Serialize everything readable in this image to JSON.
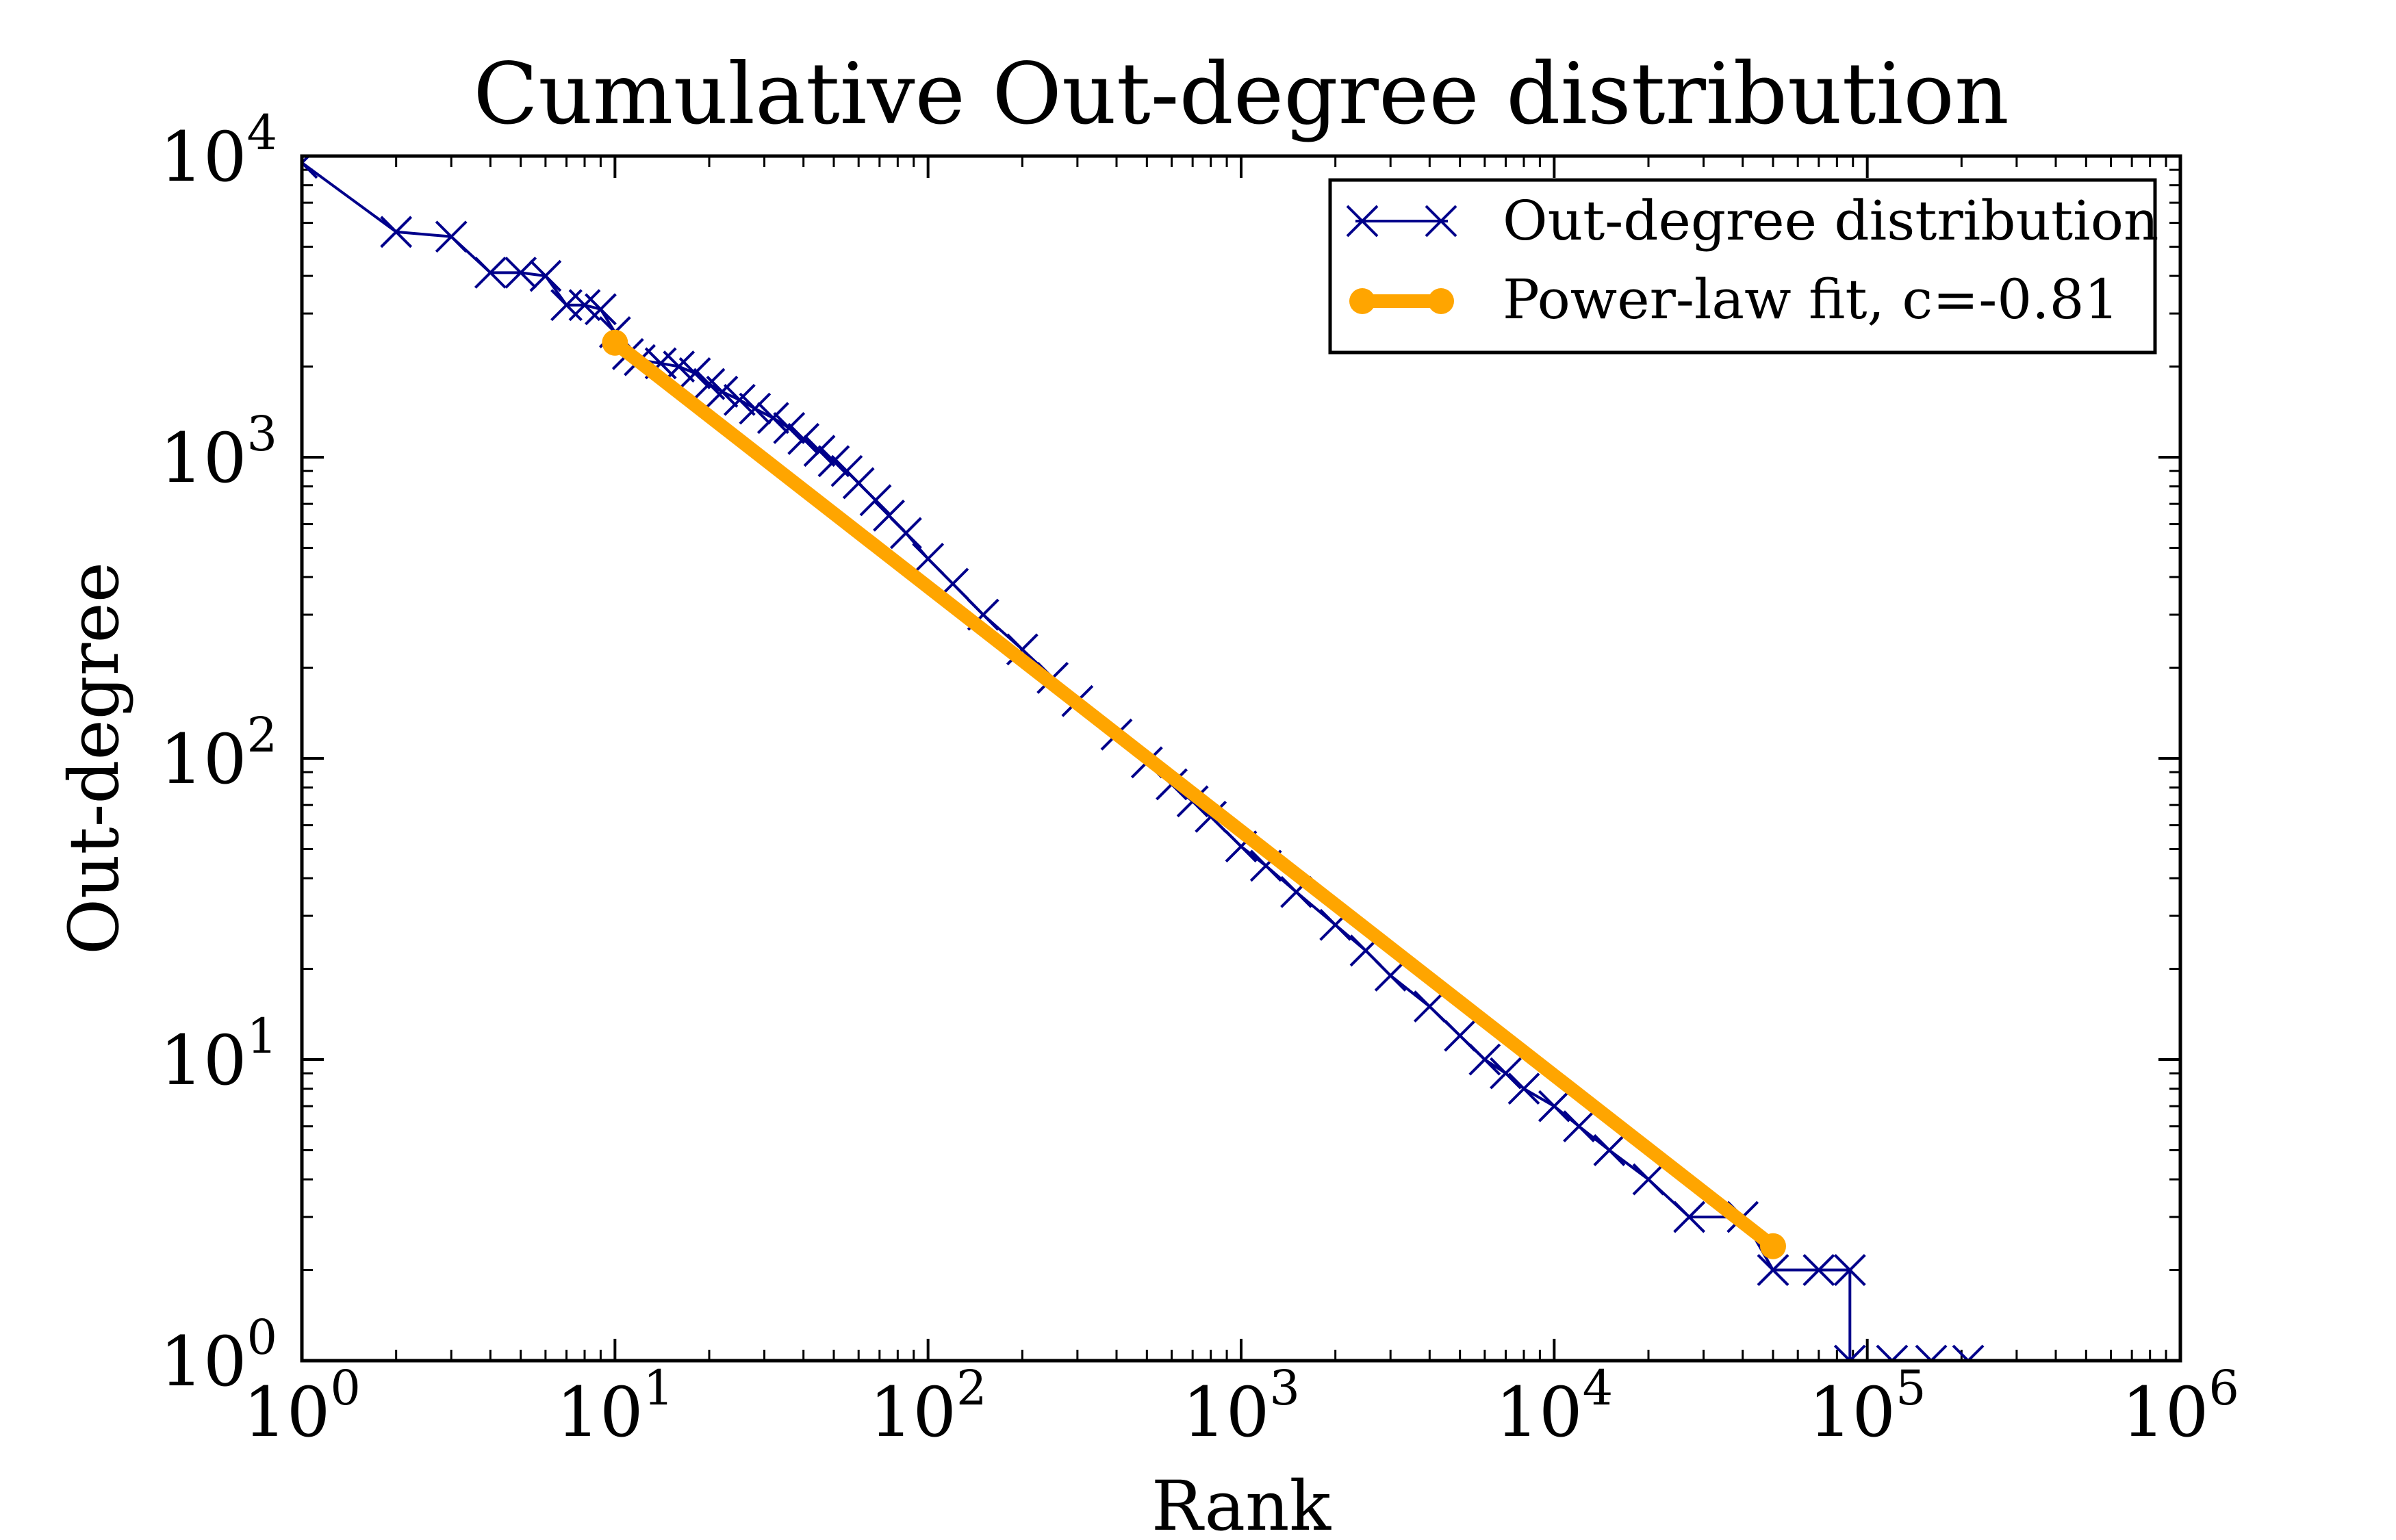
{
  "chart_data": {
    "type": "line",
    "title": "Cumulative Out-degree distribution",
    "xlabel": "Rank",
    "ylabel": "Out-degree",
    "x_scale": "log",
    "y_scale": "log",
    "xlim": [
      1,
      1000000
    ],
    "ylim": [
      1,
      10000
    ],
    "grid": false,
    "legend_position": "top-right",
    "x_ticks": [
      {
        "value": 1,
        "base": "10",
        "exp": "0"
      },
      {
        "value": 10,
        "base": "10",
        "exp": "1"
      },
      {
        "value": 100,
        "base": "10",
        "exp": "2"
      },
      {
        "value": 1000,
        "base": "10",
        "exp": "3"
      },
      {
        "value": 10000,
        "base": "10",
        "exp": "4"
      },
      {
        "value": 100000,
        "base": "10",
        "exp": "5"
      },
      {
        "value": 1000000,
        "base": "10",
        "exp": "6"
      }
    ],
    "y_ticks": [
      {
        "value": 1,
        "base": "10",
        "exp": "0"
      },
      {
        "value": 10,
        "base": "10",
        "exp": "1"
      },
      {
        "value": 100,
        "base": "10",
        "exp": "2"
      },
      {
        "value": 1000,
        "base": "10",
        "exp": "3"
      },
      {
        "value": 10000,
        "base": "10",
        "exp": "4"
      }
    ],
    "series": [
      {
        "name": "Out-degree distribution",
        "color": "#00008b",
        "marker": "x",
        "points": [
          [
            1,
            9500
          ],
          [
            2,
            5600
          ],
          [
            3,
            5400
          ],
          [
            4,
            4100
          ],
          [
            5,
            4100
          ],
          [
            6,
            4000
          ],
          [
            7,
            3200
          ],
          [
            8,
            3200
          ],
          [
            9,
            3100
          ],
          [
            10,
            2600
          ],
          [
            11,
            2200
          ],
          [
            12,
            2100
          ],
          [
            14,
            2050
          ],
          [
            16,
            2000
          ],
          [
            18,
            1900
          ],
          [
            20,
            1750
          ],
          [
            22,
            1650
          ],
          [
            25,
            1550
          ],
          [
            28,
            1450
          ],
          [
            32,
            1350
          ],
          [
            36,
            1250
          ],
          [
            40,
            1150
          ],
          [
            45,
            1050
          ],
          [
            50,
            970
          ],
          [
            55,
            900
          ],
          [
            60,
            820
          ],
          [
            68,
            720
          ],
          [
            75,
            640
          ],
          [
            85,
            560
          ],
          [
            100,
            460
          ],
          [
            120,
            380
          ],
          [
            150,
            300
          ],
          [
            200,
            230
          ],
          [
            250,
            185
          ],
          [
            300,
            155
          ],
          [
            400,
            120
          ],
          [
            500,
            97
          ],
          [
            600,
            82
          ],
          [
            700,
            72
          ],
          [
            800,
            64
          ],
          [
            1000,
            51
          ],
          [
            1200,
            44
          ],
          [
            1500,
            36
          ],
          [
            2000,
            28
          ],
          [
            2500,
            23
          ],
          [
            3000,
            19
          ],
          [
            4000,
            15
          ],
          [
            5000,
            12
          ],
          [
            6000,
            10
          ],
          [
            7000,
            9
          ],
          [
            8000,
            8
          ],
          [
            10000,
            7
          ],
          [
            12000,
            6
          ],
          [
            15000,
            5
          ],
          [
            20000,
            4
          ],
          [
            27000,
            3
          ],
          [
            40000,
            3
          ],
          [
            50000,
            2
          ],
          [
            70000,
            2
          ],
          [
            88000,
            2
          ],
          [
            88000,
            1
          ],
          [
            120000,
            1
          ],
          [
            160000,
            1
          ],
          [
            210000,
            1
          ]
        ]
      },
      {
        "name": "Power-law fit, c=-0.81",
        "color": "#ffa500",
        "marker": "o",
        "points": [
          [
            10,
            2400
          ],
          [
            50000,
            2.4
          ]
        ]
      }
    ]
  }
}
